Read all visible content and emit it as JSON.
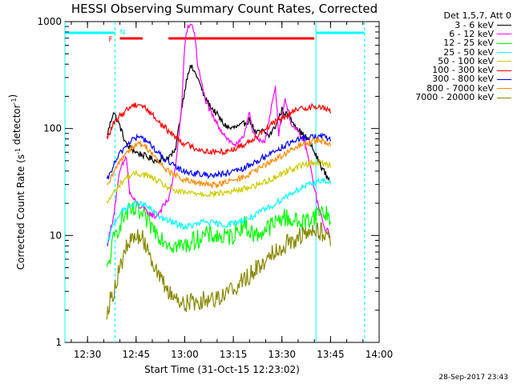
{
  "chart_data": {
    "type": "line",
    "title": "HESSI Observing Summary Count Rates, Corrected",
    "xlabel": "Start Time (31-Oct-15 12:23:02)",
    "ylabel": "Corrected Count Rate (s",
    "ylabel_sup1": "-1",
    "ylabel_mid": " detector",
    "ylabel_sup2": "-1",
    "ylabel_end": ")",
    "y_scale": "log",
    "ylim": [
      1,
      1000
    ],
    "xlim": [
      "12:23:02",
      "14:00"
    ],
    "x_ticks": [
      "12:30",
      "12:45",
      "13:00",
      "13:15",
      "13:30",
      "13:45",
      "14:00"
    ],
    "y_ticks": [
      "1",
      "10",
      "100",
      "1000"
    ],
    "legend_title": "Det 1,5,7, Att 0",
    "legend_position": "top-right-outside",
    "footer": "28-Sep-2017 23:43",
    "flag_labels": {
      "F": "F",
      "N": "N"
    },
    "series": [
      {
        "name": "3 - 6 keV",
        "color": "#000000",
        "points": [
          [
            "12:36",
            85
          ],
          [
            "12:38",
            145
          ],
          [
            "12:40",
            105
          ],
          [
            "12:42",
            70
          ],
          [
            "12:45",
            60
          ],
          [
            "12:48",
            55
          ],
          [
            "12:51",
            50
          ],
          [
            "12:54",
            52
          ],
          [
            "12:57",
            60
          ],
          [
            "12:59",
            150
          ],
          [
            "13:01",
            340
          ],
          [
            "13:02",
            380
          ],
          [
            "13:04",
            300
          ],
          [
            "13:06",
            200
          ],
          [
            "13:08",
            160
          ],
          [
            "13:10",
            135
          ],
          [
            "13:12",
            110
          ],
          [
            "13:14",
            100
          ],
          [
            "13:17",
            105
          ],
          [
            "13:20",
            120
          ],
          [
            "13:22",
            90
          ],
          [
            "13:24",
            95
          ],
          [
            "13:26",
            85
          ],
          [
            "13:28",
            105
          ],
          [
            "13:30",
            150
          ],
          [
            "13:32",
            130
          ],
          [
            "13:34",
            110
          ],
          [
            "13:36",
            90
          ],
          [
            "13:38",
            80
          ],
          [
            "13:40",
            60
          ],
          [
            "13:42",
            45
          ],
          [
            "13:44",
            35
          ],
          [
            "13:45",
            33
          ]
        ]
      },
      {
        "name": "6 - 12 keV",
        "color": "#ff00ff",
        "points": [
          [
            "12:36",
            8
          ],
          [
            "12:38",
            15
          ],
          [
            "12:40",
            40
          ],
          [
            "12:42",
            55
          ],
          [
            "12:43",
            25
          ],
          [
            "12:45",
            20
          ],
          [
            "12:47",
            18
          ],
          [
            "12:49",
            16
          ],
          [
            "12:51",
            15
          ],
          [
            "12:53",
            18
          ],
          [
            "12:55",
            22
          ],
          [
            "12:57",
            40
          ],
          [
            "12:59",
            150
          ],
          [
            "13:00",
            600
          ],
          [
            "13:01",
            900
          ],
          [
            "13:02",
            950
          ],
          [
            "13:03",
            800
          ],
          [
            "13:04",
            400
          ],
          [
            "13:06",
            200
          ],
          [
            "13:08",
            140
          ],
          [
            "13:10",
            110
          ],
          [
            "13:12",
            90
          ],
          [
            "13:14",
            75
          ],
          [
            "13:16",
            70
          ],
          [
            "13:18",
            80
          ],
          [
            "13:20",
            150
          ],
          [
            "13:21",
            90
          ],
          [
            "13:23",
            75
          ],
          [
            "13:25",
            80
          ],
          [
            "13:28",
            250
          ],
          [
            "13:29",
            90
          ],
          [
            "13:31",
            190
          ],
          [
            "13:33",
            110
          ],
          [
            "13:35",
            90
          ],
          [
            "13:37",
            75
          ],
          [
            "13:39",
            40
          ],
          [
            "13:41",
            20
          ],
          [
            "13:43",
            12
          ],
          [
            "13:45",
            10
          ]
        ]
      },
      {
        "name": "12 - 25 keV",
        "color": "#00ff00",
        "points": [
          [
            "12:36",
            4.5
          ],
          [
            "12:38",
            9
          ],
          [
            "12:40",
            13
          ],
          [
            "12:42",
            16
          ],
          [
            "12:45",
            17
          ],
          [
            "12:48",
            14
          ],
          [
            "12:51",
            11
          ],
          [
            "12:54",
            9
          ],
          [
            "12:57",
            8
          ],
          [
            "13:00",
            8
          ],
          [
            "13:03",
            9
          ],
          [
            "13:06",
            10
          ],
          [
            "13:09",
            10
          ],
          [
            "13:12",
            9.5
          ],
          [
            "13:15",
            10
          ],
          [
            "13:18",
            13
          ],
          [
            "13:20",
            11
          ],
          [
            "13:22",
            10
          ],
          [
            "13:25",
            11.5
          ],
          [
            "13:28",
            13
          ],
          [
            "13:30",
            15
          ],
          [
            "13:33",
            14
          ],
          [
            "13:36",
            13
          ],
          [
            "13:39",
            14.5
          ],
          [
            "13:42",
            17
          ],
          [
            "13:45",
            15
          ]
        ]
      },
      {
        "name": "25 - 50 keV",
        "color": "#00ffff",
        "points": [
          [
            "12:36",
            8
          ],
          [
            "12:38",
            13
          ],
          [
            "12:40",
            16
          ],
          [
            "12:42",
            18
          ],
          [
            "12:45",
            20
          ],
          [
            "12:48",
            19
          ],
          [
            "12:51",
            16
          ],
          [
            "12:54",
            14
          ],
          [
            "12:57",
            13
          ],
          [
            "13:00",
            12
          ],
          [
            "13:03",
            12.5
          ],
          [
            "13:06",
            13.5
          ],
          [
            "13:09",
            13
          ],
          [
            "13:12",
            12.5
          ],
          [
            "13:15",
            13
          ],
          [
            "13:18",
            14
          ],
          [
            "13:21",
            15
          ],
          [
            "13:24",
            17
          ],
          [
            "13:27",
            19
          ],
          [
            "13:30",
            22
          ],
          [
            "13:33",
            25
          ],
          [
            "13:36",
            28
          ],
          [
            "13:39",
            30
          ],
          [
            "13:42",
            33
          ],
          [
            "13:45",
            31
          ]
        ]
      },
      {
        "name": "50 - 100 keV",
        "color": "#cccc00",
        "points": [
          [
            "12:36",
            20
          ],
          [
            "12:38",
            25
          ],
          [
            "12:40",
            30
          ],
          [
            "12:42",
            35
          ],
          [
            "12:45",
            38
          ],
          [
            "12:48",
            37
          ],
          [
            "12:51",
            33
          ],
          [
            "12:54",
            29
          ],
          [
            "12:57",
            26
          ],
          [
            "13:00",
            25
          ],
          [
            "13:03",
            25
          ],
          [
            "13:06",
            24.5
          ],
          [
            "13:09",
            24.5
          ],
          [
            "13:12",
            25
          ],
          [
            "13:15",
            26
          ],
          [
            "13:18",
            27
          ],
          [
            "13:21",
            29
          ],
          [
            "13:24",
            31
          ],
          [
            "13:27",
            34
          ],
          [
            "13:30",
            38
          ],
          [
            "13:33",
            42
          ],
          [
            "13:36",
            45
          ],
          [
            "13:39",
            48
          ],
          [
            "13:42",
            48
          ],
          [
            "13:45",
            45
          ]
        ]
      },
      {
        "name": "100 - 300 keV",
        "color": "#ff0000",
        "points": [
          [
            "12:36",
            80
          ],
          [
            "12:38",
            110
          ],
          [
            "12:40",
            130
          ],
          [
            "12:42",
            150
          ],
          [
            "12:44",
            165
          ],
          [
            "12:46",
            170
          ],
          [
            "12:48",
            155
          ],
          [
            "12:50",
            135
          ],
          [
            "12:52",
            115
          ],
          [
            "12:55",
            95
          ],
          [
            "12:58",
            80
          ],
          [
            "13:00",
            72
          ],
          [
            "13:03",
            66
          ],
          [
            "13:06",
            62
          ],
          [
            "13:09",
            60
          ],
          [
            "13:12",
            61
          ],
          [
            "13:15",
            64
          ],
          [
            "13:18",
            70
          ],
          [
            "13:21",
            80
          ],
          [
            "13:24",
            95
          ],
          [
            "13:27",
            110
          ],
          [
            "13:30",
            125
          ],
          [
            "13:33",
            140
          ],
          [
            "13:36",
            155
          ],
          [
            "13:39",
            160
          ],
          [
            "13:42",
            158
          ],
          [
            "13:45",
            145
          ]
        ]
      },
      {
        "name": "300 - 800 keV",
        "color": "#0000ff",
        "points": [
          [
            "12:36",
            32
          ],
          [
            "12:38",
            45
          ],
          [
            "12:40",
            58
          ],
          [
            "12:42",
            70
          ],
          [
            "12:44",
            80
          ],
          [
            "12:46",
            83
          ],
          [
            "12:48",
            78
          ],
          [
            "12:50",
            68
          ],
          [
            "12:52",
            58
          ],
          [
            "12:55",
            48
          ],
          [
            "12:58",
            42
          ],
          [
            "13:00",
            40
          ],
          [
            "13:03",
            38
          ],
          [
            "13:06",
            37
          ],
          [
            "13:09",
            37
          ],
          [
            "13:12",
            37.5
          ],
          [
            "13:15",
            39
          ],
          [
            "13:18",
            42
          ],
          [
            "13:21",
            47
          ],
          [
            "13:24",
            53
          ],
          [
            "13:27",
            60
          ],
          [
            "13:30",
            67
          ],
          [
            "13:33",
            74
          ],
          [
            "13:36",
            80
          ],
          [
            "13:39",
            84
          ],
          [
            "13:42",
            85
          ],
          [
            "13:45",
            80
          ]
        ]
      },
      {
        "name": "800 - 7000 keV",
        "color": "#ff8800",
        "points": [
          [
            "12:36",
            28
          ],
          [
            "12:38",
            38
          ],
          [
            "12:40",
            50
          ],
          [
            "12:42",
            60
          ],
          [
            "12:44",
            68
          ],
          [
            "12:46",
            72
          ],
          [
            "12:48",
            68
          ],
          [
            "12:50",
            58
          ],
          [
            "12:52",
            48
          ],
          [
            "12:55",
            40
          ],
          [
            "12:58",
            35
          ],
          [
            "13:00",
            33
          ],
          [
            "13:03",
            31
          ],
          [
            "13:06",
            30
          ],
          [
            "13:09",
            30
          ],
          [
            "13:12",
            31
          ],
          [
            "13:15",
            32.5
          ],
          [
            "13:18",
            35
          ],
          [
            "13:21",
            39
          ],
          [
            "13:24",
            44
          ],
          [
            "13:27",
            50
          ],
          [
            "13:30",
            56
          ],
          [
            "13:33",
            63
          ],
          [
            "13:36",
            70
          ],
          [
            "13:39",
            76
          ],
          [
            "13:42",
            78
          ],
          [
            "13:45",
            72
          ]
        ]
      },
      {
        "name": "7000 - 20000 keV",
        "color": "#888800",
        "points": [
          [
            "12:36",
            2
          ],
          [
            "12:38",
            3
          ],
          [
            "12:40",
            5
          ],
          [
            "12:42",
            7.5
          ],
          [
            "12:44",
            9.5
          ],
          [
            "12:46",
            10
          ],
          [
            "12:48",
            8.5
          ],
          [
            "12:50",
            6
          ],
          [
            "12:52",
            4
          ],
          [
            "12:55",
            3
          ],
          [
            "12:58",
            2.5
          ],
          [
            "13:00",
            2.3
          ],
          [
            "13:03",
            2.4
          ],
          [
            "13:06",
            2.5
          ],
          [
            "13:09",
            2.6
          ],
          [
            "13:12",
            2.8
          ],
          [
            "13:15",
            3.2
          ],
          [
            "13:18",
            3.8
          ],
          [
            "13:21",
            4.5
          ],
          [
            "13:24",
            5.5
          ],
          [
            "13:27",
            7
          ],
          [
            "13:30",
            8
          ],
          [
            "13:33",
            9
          ],
          [
            "13:36",
            10
          ],
          [
            "13:39",
            10.5
          ],
          [
            "13:42",
            11
          ],
          [
            "13:45",
            9.5
          ]
        ]
      }
    ],
    "day_night_bars": [
      [
        "12:23:02",
        "12:38:30"
      ],
      [
        "13:40:30",
        "13:55:30"
      ]
    ],
    "saa_bars": [
      [
        "12:40",
        "12:47"
      ],
      [
        "12:55",
        "13:40"
      ]
    ],
    "solid_vlines": [
      "12:23:02",
      "13:40:30"
    ],
    "dashed_vlines": [
      "12:38:30",
      "13:55:30"
    ],
    "colors": {
      "axes": "#000000",
      "orbit": "#00ffff",
      "flag": "#ff0000"
    }
  }
}
